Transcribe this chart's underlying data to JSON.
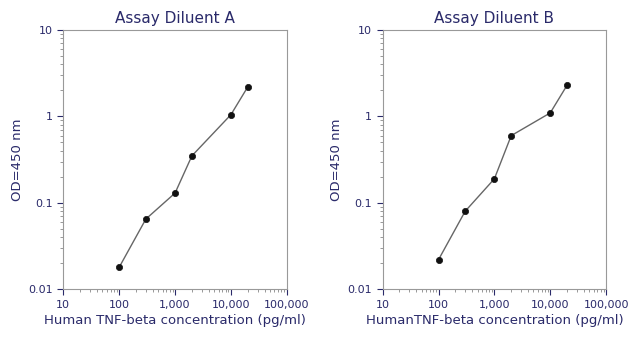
{
  "panel_A": {
    "title": "Assay Diluent A",
    "xlabel": "Human TNF-beta concentration (pg/ml)",
    "ylabel": "OD=450 nm",
    "x": [
      100,
      300,
      1000,
      2000,
      10000,
      20000
    ],
    "y": [
      0.018,
      0.065,
      0.13,
      0.35,
      1.05,
      2.2
    ]
  },
  "panel_B": {
    "title": "Assay Diluent B",
    "xlabel": "HumanTNF-beta concentration (pg/ml)",
    "ylabel": "OD=450 nm",
    "x": [
      100,
      300,
      1000,
      2000,
      10000,
      20000
    ],
    "y": [
      0.022,
      0.08,
      0.19,
      0.6,
      1.1,
      2.3
    ]
  },
  "xlim": [
    10,
    100000
  ],
  "ylim": [
    0.01,
    10
  ],
  "line_color": "#666666",
  "marker_color": "#111111",
  "title_fontsize": 11,
  "label_fontsize": 9.5,
  "tick_fontsize": 8,
  "bg_color": "#ffffff",
  "text_color": "#2a2a6a"
}
